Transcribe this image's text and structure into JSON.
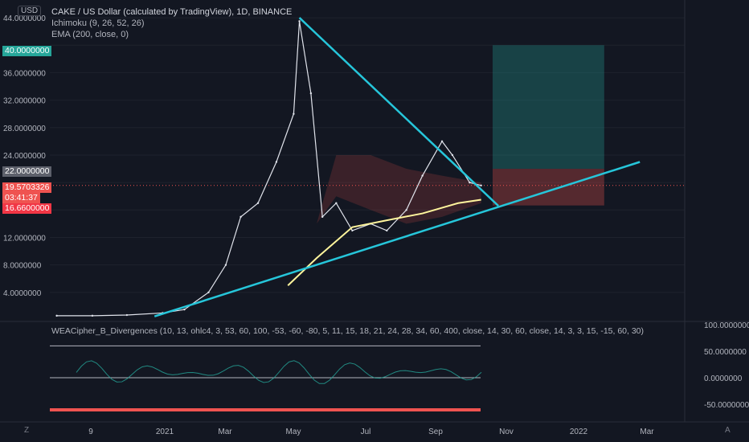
{
  "header": {
    "currency_badge": "USD",
    "title": "CAKE / US Dollar (calculated by TradingView), 1D, BINANCE",
    "indicators": [
      "Ichimoku (9, 26, 52, 26)",
      "EMA (200, close, 0)"
    ]
  },
  "oscillator": {
    "title": "WEACipher_B_Divergences (10, 13, ohlc4, 3, 53, 60, 100, -53, -60, -80, 5, 11, 15, 18, 21, 24, 28, 34, 60, 400, close, 14, 30, 60, close, 14, 3, 3, 15, -15, 60, 30)",
    "axis_labels": [
      "100.0000000",
      "50.0000000",
      "0.0000000",
      "-50.0000000"
    ]
  },
  "price_axis": {
    "labels": [
      "44.0000000",
      "36.0000000",
      "32.0000000",
      "28.0000000",
      "24.0000000",
      "12.0000000",
      "8.0000000",
      "4.0000000"
    ]
  },
  "price_tags": [
    {
      "text": "40.0000000",
      "color": "#26a69a"
    },
    {
      "text": "22.0000000",
      "color": "#5d606b"
    },
    {
      "text": "19.5703326",
      "color": "#ef5350"
    },
    {
      "text": "03:41:37",
      "color": "#ef5350"
    },
    {
      "text": "16.6600000",
      "color": "#f23645"
    }
  ],
  "time_axis": {
    "labels": [
      "9",
      "2021",
      "Mar",
      "May",
      "Jul",
      "Sep",
      "Nov",
      "2022",
      "Mar"
    ]
  },
  "corner_icons": {
    "left": "Z",
    "right": "A"
  },
  "colors": {
    "background": "#131722",
    "trendline": "#26c6da",
    "ema": "#fff59d",
    "cloud": "#ef5350",
    "target_zone": "#26a69a"
  },
  "chart_data": {
    "type": "line",
    "title": "CAKE / US Dollar (calculated by TradingView), 1D, BINANCE",
    "x_range": [
      "2020-09-25",
      "2022-03-31"
    ],
    "ylim": [
      0,
      46
    ],
    "price_series": {
      "name": "CAKE / US Dollar",
      "x": [
        "2020-10-01",
        "2020-11-01",
        "2020-12-01",
        "2021-01-01",
        "2021-01-20",
        "2021-02-10",
        "2021-02-25",
        "2021-03-10",
        "2021-03-25",
        "2021-04-10",
        "2021-04-25",
        "2021-04-30",
        "2021-05-10",
        "2021-05-20",
        "2021-06-01",
        "2021-06-15",
        "2021-07-01",
        "2021-07-15",
        "2021-08-01",
        "2021-08-15",
        "2021-09-01",
        "2021-09-10",
        "2021-09-25",
        "2021-10-05"
      ],
      "values": [
        0.6,
        0.6,
        0.7,
        1.0,
        1.5,
        4.0,
        8.0,
        15.0,
        17.0,
        23.0,
        30.0,
        43.5,
        33.0,
        15.0,
        17.0,
        13.0,
        14.0,
        13.0,
        16.0,
        21.0,
        26.0,
        24.0,
        20.0,
        19.57
      ]
    },
    "ema200": {
      "name": "EMA (200, close, 0)",
      "x": [
        "2021-04-20",
        "2021-05-15",
        "2021-06-15",
        "2021-07-15",
        "2021-08-15",
        "2021-09-15",
        "2021-10-05"
      ],
      "values": [
        5.0,
        9.0,
        13.5,
        14.5,
        15.5,
        17.0,
        17.5
      ]
    },
    "trendlines": [
      {
        "from": {
          "x": "2020-12-25",
          "y": 0.5
        },
        "to": {
          "x": "2022-02-20",
          "y": 23.0
        }
      },
      {
        "from": {
          "x": "2021-04-30",
          "y": 44.0
        },
        "to": {
          "x": "2021-10-20",
          "y": 16.6
        }
      }
    ],
    "target_zone": {
      "x": [
        "2021-10-15",
        "2022-01-20"
      ],
      "y": [
        22.0,
        40.0
      ]
    },
    "stop_zone": {
      "x": [
        "2021-10-15",
        "2022-01-20"
      ],
      "y": [
        16.66,
        22.0
      ]
    },
    "current_price": 19.5703326
  }
}
